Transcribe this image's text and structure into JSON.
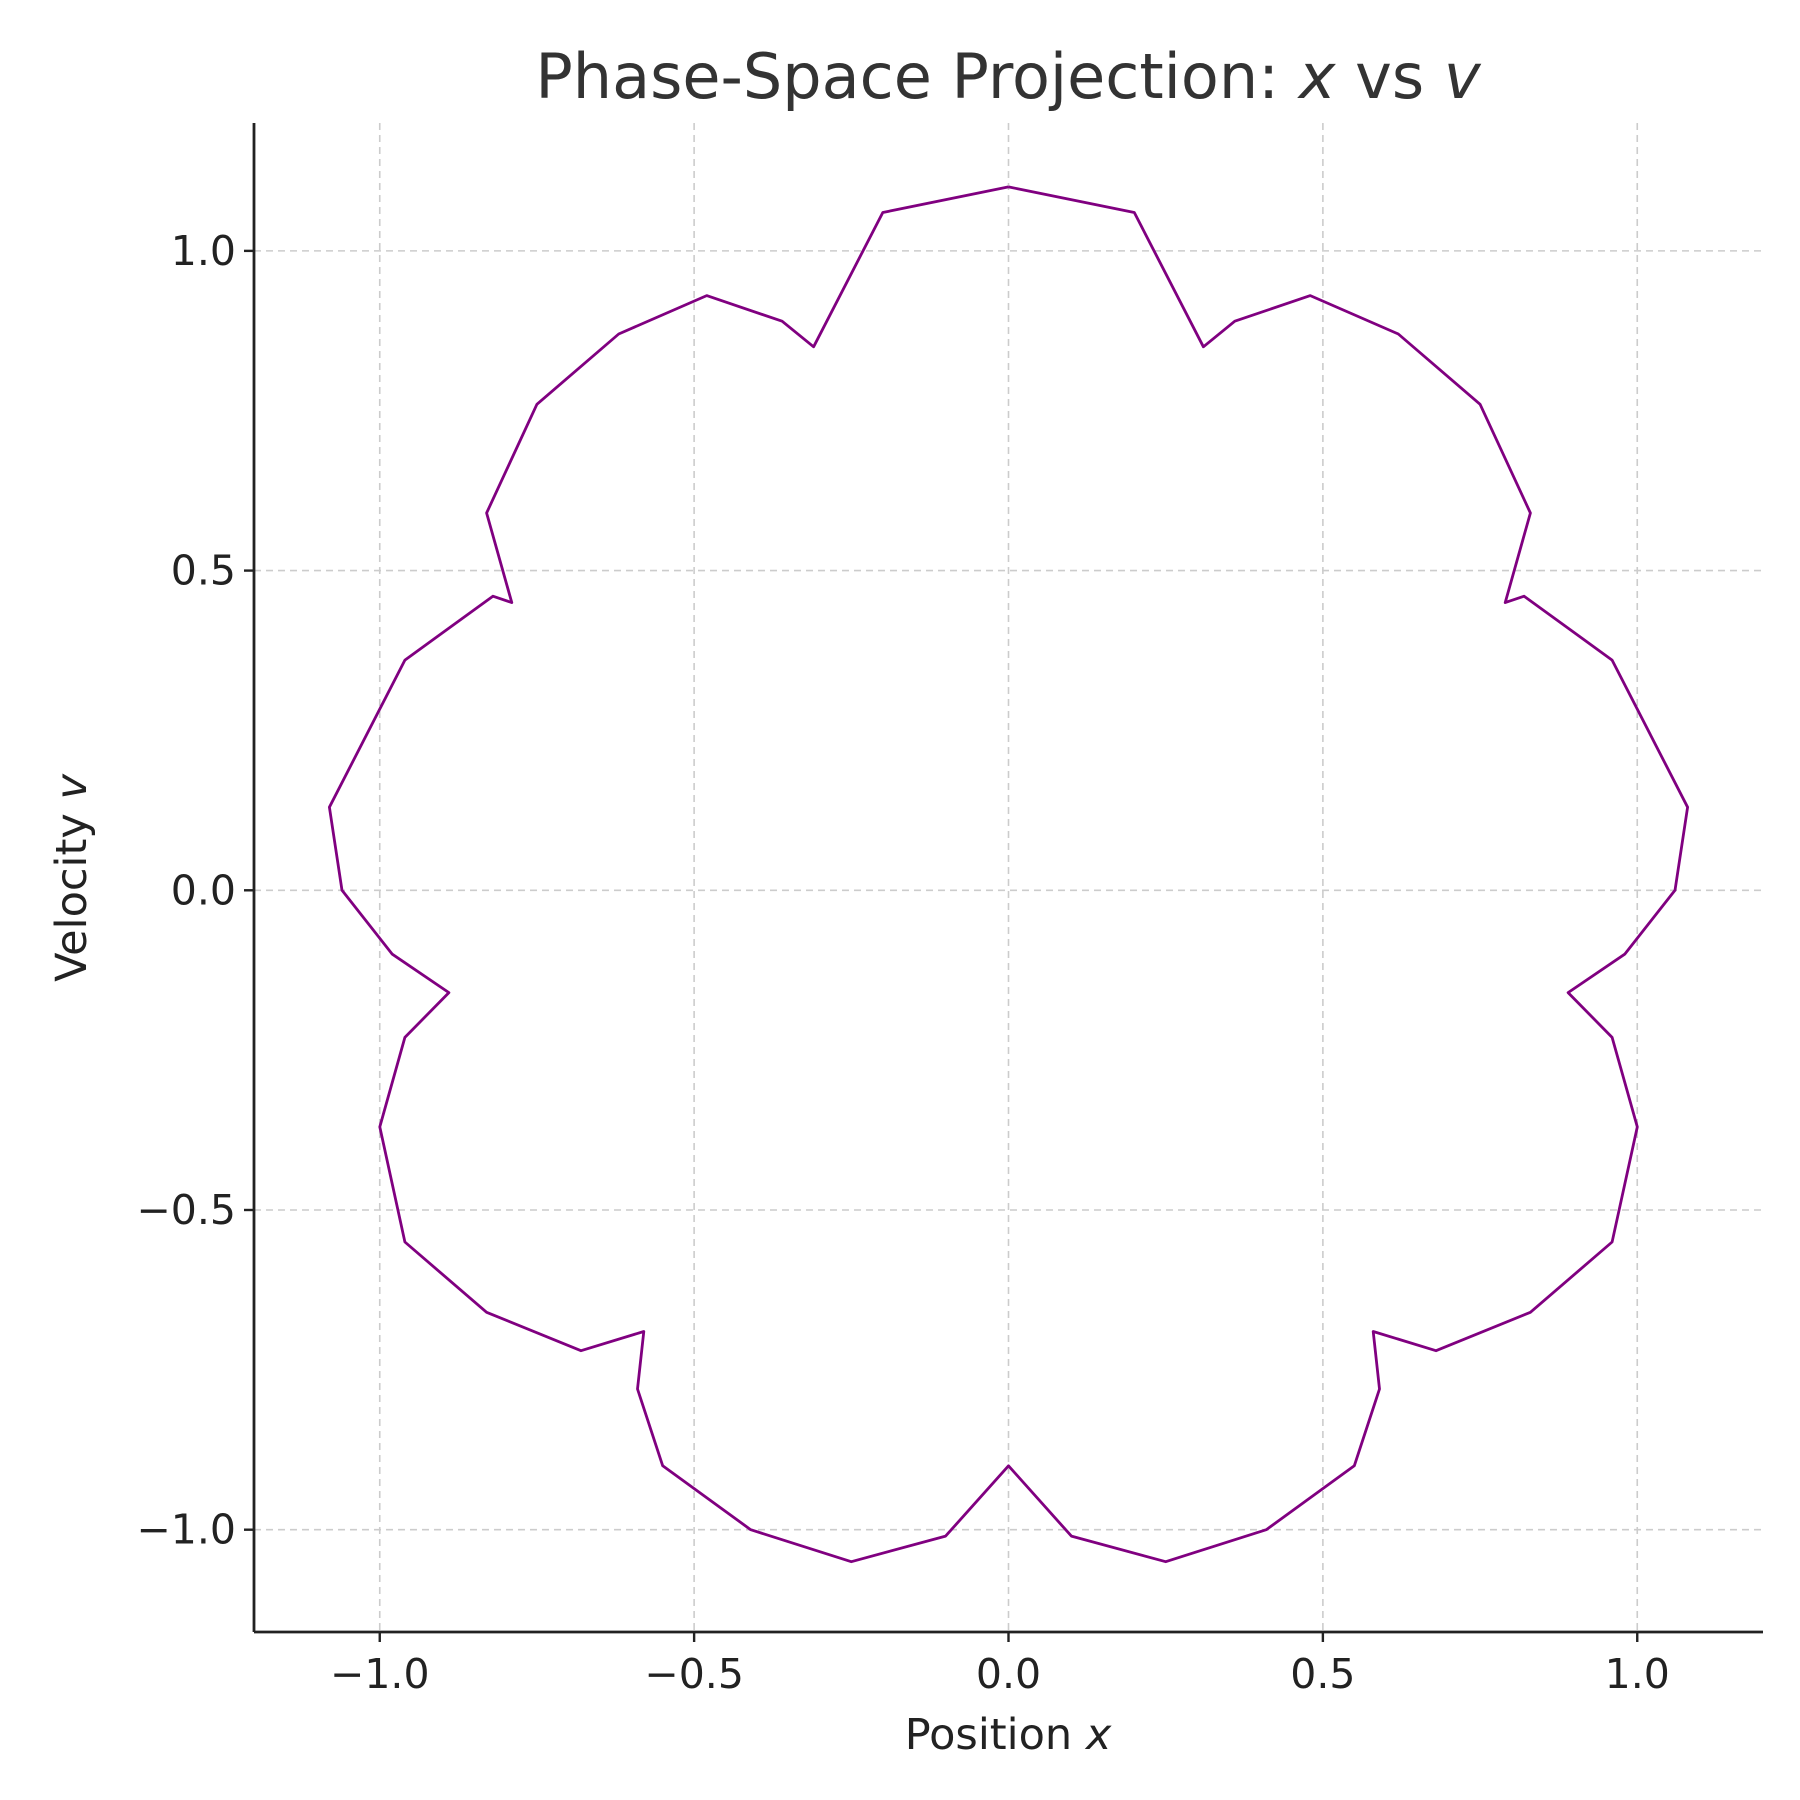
{
  "chart_data": {
    "type": "line",
    "title": {
      "main": "Phase-Space Projection: ",
      "var1": "x",
      "mid": " vs ",
      "var2": "v"
    },
    "xlabel": {
      "text": "Position ",
      "var": "x"
    },
    "ylabel": {
      "text": "Velocity ",
      "var": "v"
    },
    "xlim": [
      -1.2,
      1.2
    ],
    "ylim": [
      -1.16,
      1.2
    ],
    "xticks": [
      -1.0,
      -0.5,
      0.0,
      0.5,
      1.0
    ],
    "yticks": [
      -1.0,
      -0.5,
      0.0,
      0.5,
      1.0
    ],
    "xtick_labels": [
      "−1.0",
      "−0.5",
      "0.0",
      "0.5",
      "1.0"
    ],
    "ytick_labels": [
      "−1.0",
      "−0.5",
      "0.0",
      "0.5",
      "1.0"
    ],
    "grid": true,
    "series": [
      {
        "color": "#800080",
        "x": [
          0.0,
          0.2,
          0.31,
          0.36,
          0.48,
          0.62,
          0.75,
          0.83,
          0.79,
          0.82,
          0.96,
          1.08,
          1.06,
          0.98,
          0.89,
          0.96,
          1.0,
          0.96,
          0.83,
          0.68,
          0.58,
          0.59,
          0.55,
          0.41,
          0.25,
          0.1,
          0.0,
          -0.1,
          -0.25,
          -0.41,
          -0.55,
          -0.59,
          -0.58,
          -0.68,
          -0.83,
          -0.96,
          -1.0,
          -0.96,
          -0.89,
          -0.98,
          -1.06,
          -1.08,
          -0.96,
          -0.82,
          -0.79,
          -0.83,
          -0.75,
          -0.62,
          -0.48,
          -0.36,
          -0.31,
          -0.2,
          0.0
        ],
        "y": [
          1.1,
          1.06,
          0.85,
          0.89,
          0.93,
          0.87,
          0.76,
          0.59,
          0.45,
          0.46,
          0.36,
          0.13,
          0.0,
          -0.1,
          -0.16,
          -0.23,
          -0.37,
          -0.55,
          -0.66,
          -0.72,
          -0.69,
          -0.78,
          -0.9,
          -1.0,
          -1.05,
          -1.01,
          -0.9,
          -1.01,
          -1.05,
          -1.0,
          -0.9,
          -0.78,
          -0.69,
          -0.72,
          -0.66,
          -0.55,
          -0.37,
          -0.23,
          -0.16,
          -0.1,
          0.0,
          0.13,
          0.36,
          0.46,
          0.45,
          0.59,
          0.76,
          0.87,
          0.93,
          0.89,
          0.85,
          1.06,
          1.1
        ]
      }
    ]
  }
}
